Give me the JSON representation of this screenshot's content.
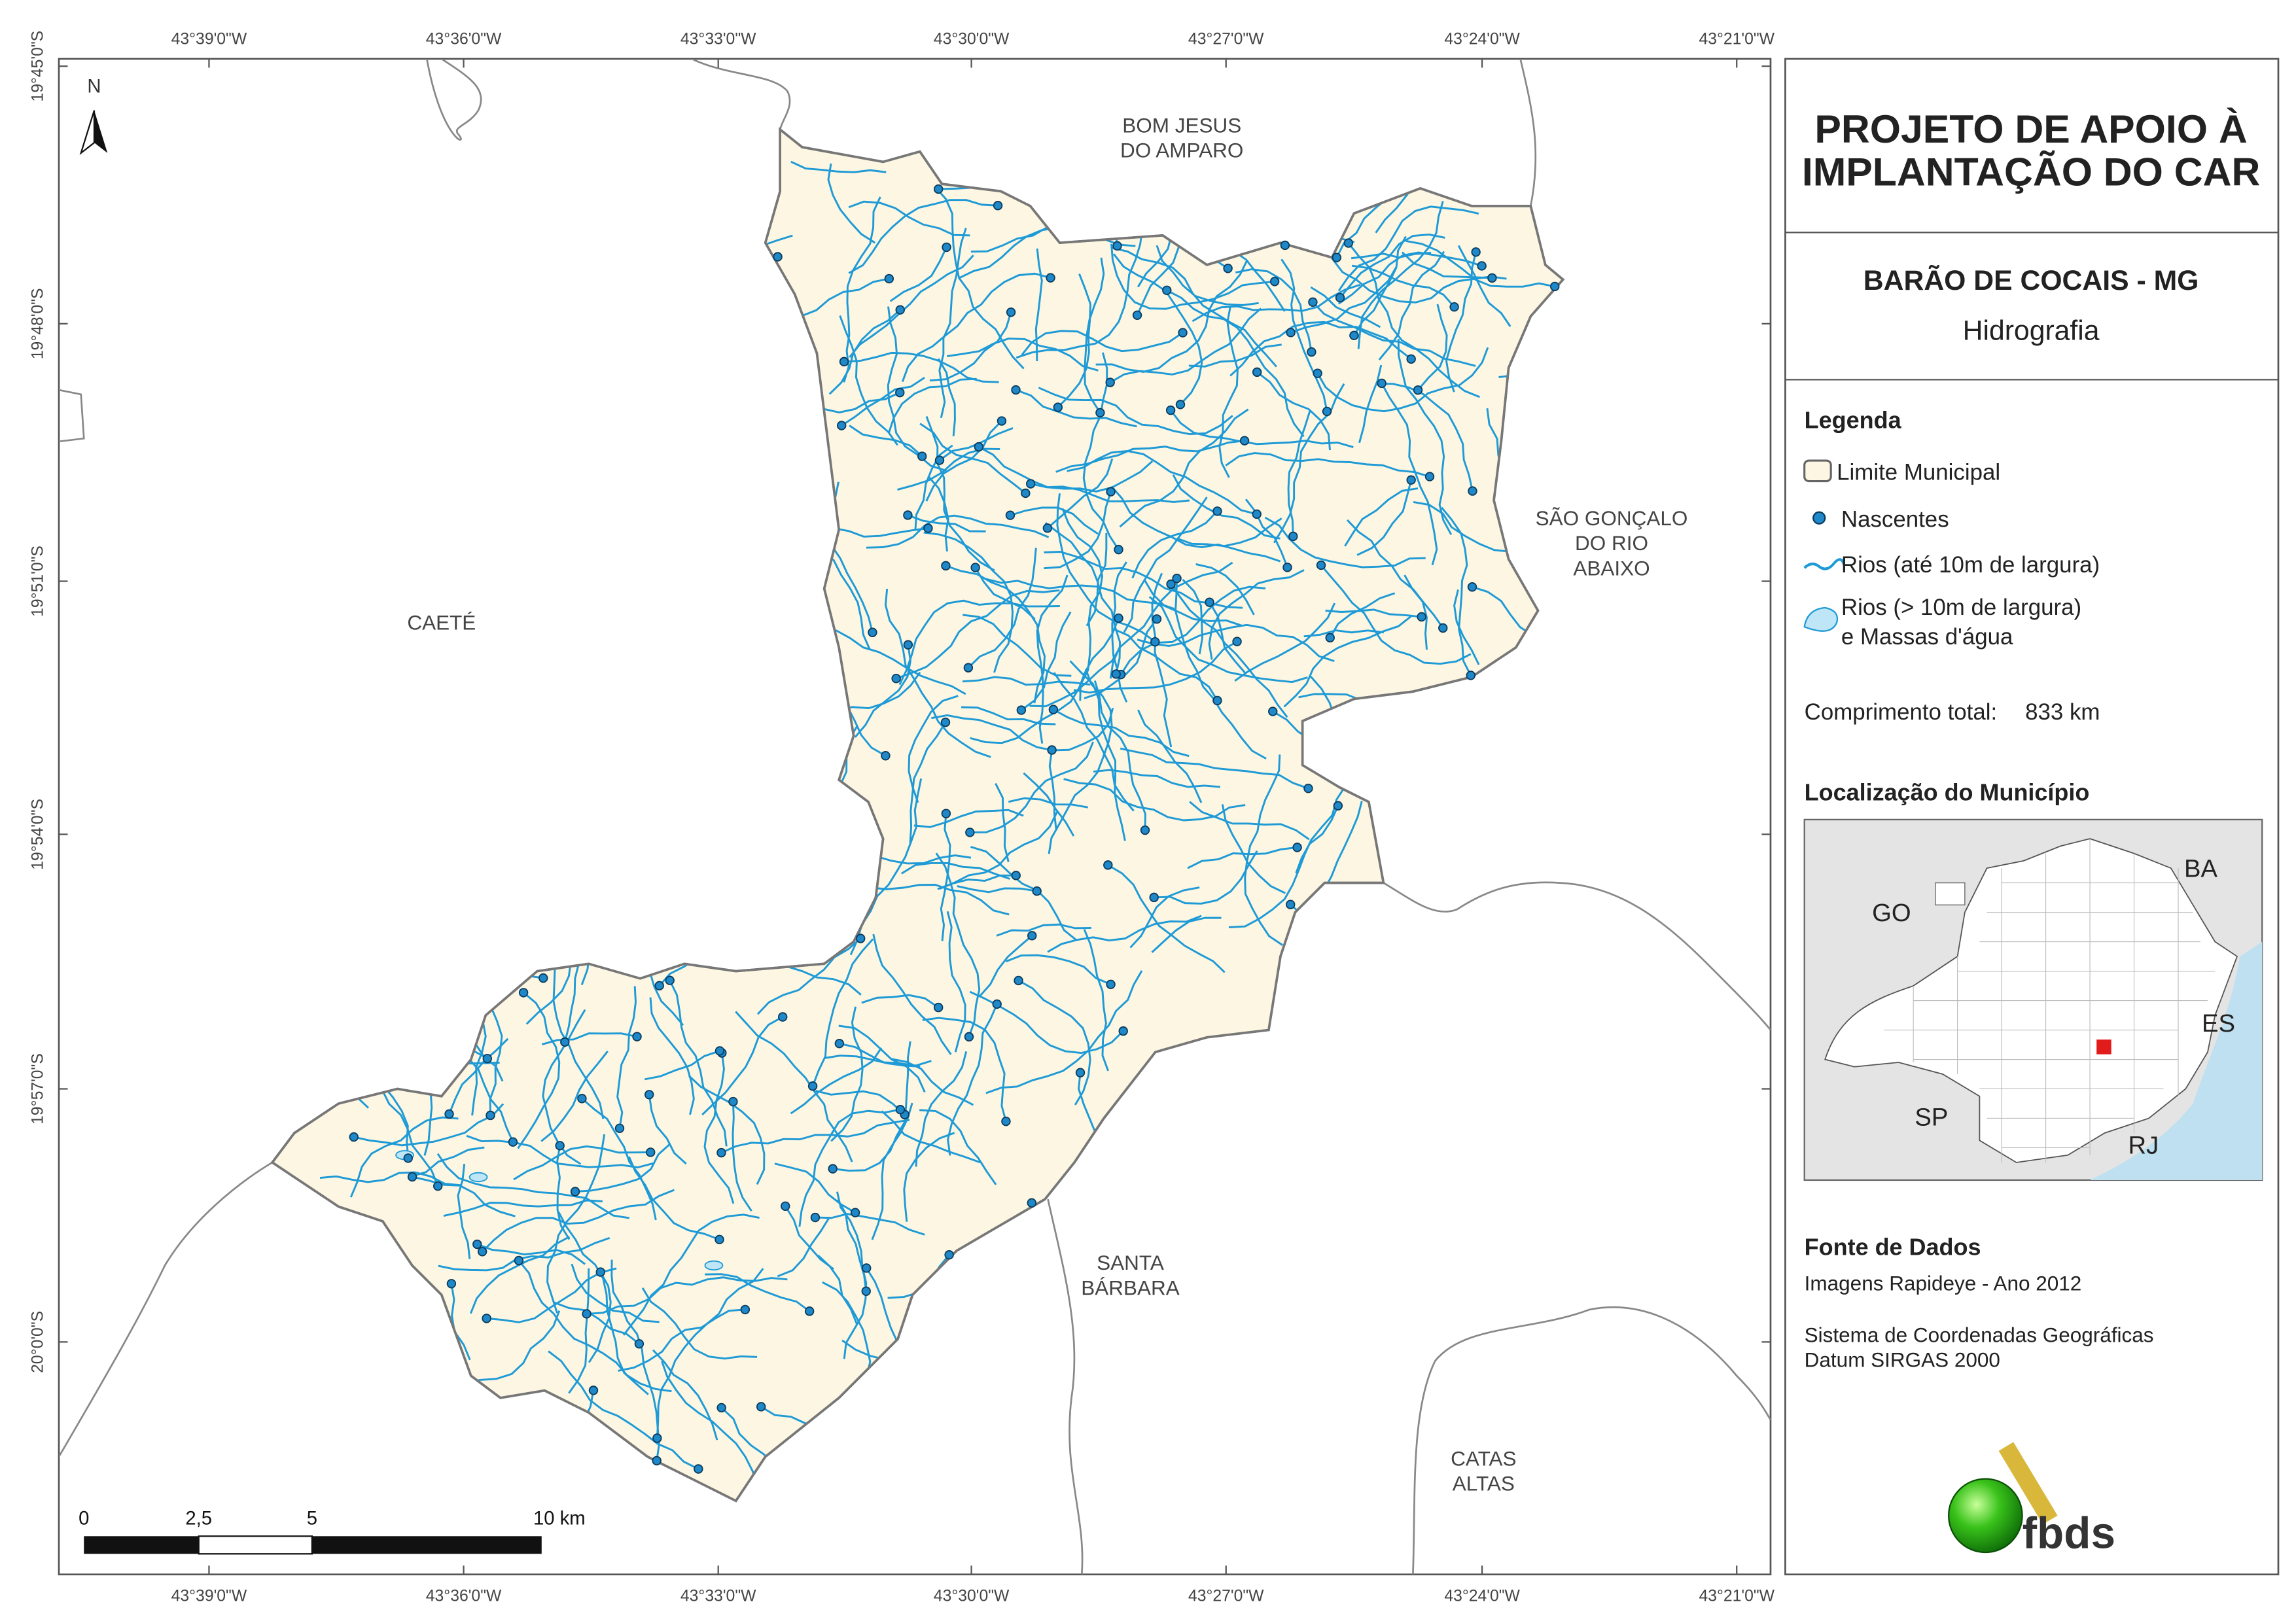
{
  "header": {
    "title_lines": [
      "PROJETO DE APOIO À",
      "IMPLANTAÇÃO DO CAR"
    ],
    "municipality": "BARÃO DE COCAIS - MG",
    "theme": "Hidrografia"
  },
  "legend": {
    "title": "Legenda",
    "items": [
      {
        "lines": [
          "Limite Municipal"
        ]
      },
      {
        "lines": [
          "Nascentes"
        ]
      },
      {
        "lines": [
          "Rios (até 10m de largura)"
        ]
      },
      {
        "lines": [
          "Rios (> 10m de largura)",
          "e Massas d'água"
        ]
      }
    ],
    "total_length_label": "Comprimento total:",
    "total_length": "833 km"
  },
  "location": {
    "title": "Localização do Município",
    "states": [
      "GO",
      "BA",
      "ES",
      "SP",
      "RJ"
    ]
  },
  "sources": {
    "title": "Fonte de Dados",
    "lines": [
      "Imagens Rapideye - Ano 2012",
      "Sistema de Coordenadas Geográficas",
      "Datum SIRGAS 2000"
    ]
  },
  "logo": "fbds",
  "map": {
    "north": "N",
    "longitudes": [
      "43°39'0\"W",
      "43°36'0\"W",
      "43°33'0\"W",
      "43°30'0\"W",
      "43°27'0\"W",
      "43°24'0\"W",
      "43°21'0\"W"
    ],
    "latitudes": [
      "19°45'0\"S",
      "19°48'0\"S",
      "19°51'0\"S",
      "19°54'0\"S",
      "19°57'0\"S",
      "20°0'0\"S"
    ],
    "places": [
      {
        "lines": [
          "BOM JESUS",
          "DO AMPARO"
        ]
      },
      {
        "lines": [
          "CAETÉ"
        ]
      },
      {
        "lines": [
          "SÃO GONÇALO",
          "DO RIO",
          "ABAIXO"
        ]
      },
      {
        "lines": [
          "SANTA",
          "BÁRBARA"
        ]
      },
      {
        "lines": [
          "CATAS",
          "ALTAS"
        ]
      }
    ],
    "scale_labels": [
      "0",
      "2,5",
      "5",
      "10 km"
    ]
  }
}
